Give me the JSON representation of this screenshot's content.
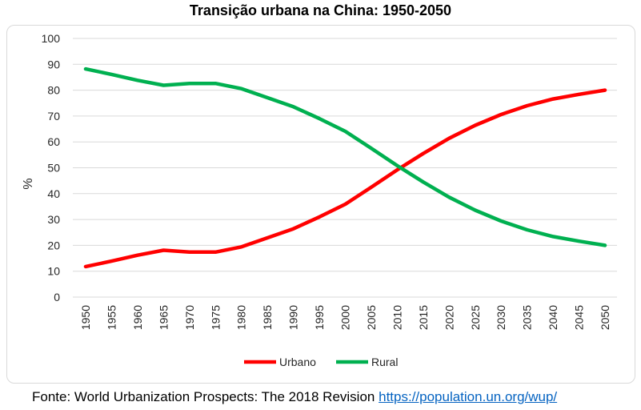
{
  "source": {
    "text": "Fonte: World Urbanization Prospects: The 2018 Revision",
    "link": "https://population.un.org/wup/"
  },
  "chart_data": {
    "type": "line",
    "title": "Transição urbana na China: 1950-2050",
    "xlabel": "",
    "ylabel": "%",
    "ylim": [
      0,
      100
    ],
    "yticks": [
      0,
      10,
      20,
      30,
      40,
      50,
      60,
      70,
      80,
      90,
      100
    ],
    "grid": true,
    "legend": "bottom",
    "x": [
      "1950",
      "1955",
      "1960",
      "1965",
      "1970",
      "1975",
      "1980",
      "1985",
      "1990",
      "1995",
      "2000",
      "2005",
      "2010",
      "2015",
      "2020",
      "2025",
      "2030",
      "2035",
      "2040",
      "2045",
      "2050"
    ],
    "series": [
      {
        "name": "Urbano",
        "color": "#ff0000",
        "values": [
          11.8,
          13.9,
          16.2,
          18.1,
          17.4,
          17.4,
          19.4,
          22.9,
          26.4,
          31.0,
          35.9,
          42.5,
          49.2,
          55.5,
          61.4,
          66.4,
          70.6,
          74.0,
          76.6,
          78.4,
          80.0
        ]
      },
      {
        "name": "Rural",
        "color": "#00b050",
        "values": [
          88.2,
          86.1,
          83.8,
          81.9,
          82.6,
          82.6,
          80.6,
          77.1,
          73.6,
          69.0,
          64.1,
          57.5,
          50.8,
          44.5,
          38.6,
          33.6,
          29.4,
          26.0,
          23.4,
          21.6,
          20.0
        ]
      }
    ]
  }
}
